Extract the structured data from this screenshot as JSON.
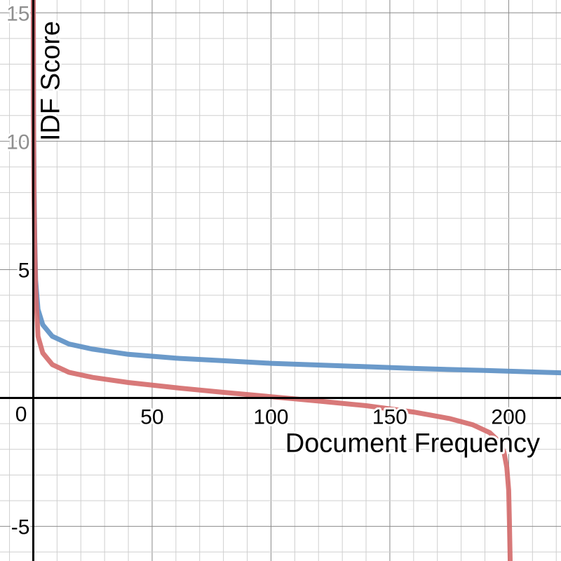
{
  "chart_data": {
    "type": "line",
    "xlabel": "Document Frequency",
    "ylabel": "IDF Score",
    "xlim": [
      -14,
      222
    ],
    "ylim": [
      -6.35,
      15.5
    ],
    "x_ticks": [
      {
        "value": 50,
        "label": "50"
      },
      {
        "value": 100,
        "label": "100"
      },
      {
        "value": 150,
        "label": "150"
      },
      {
        "value": 200,
        "label": "200"
      }
    ],
    "y_ticks": [
      {
        "value": 15,
        "label": "15"
      },
      {
        "value": 10,
        "label": "10"
      },
      {
        "value": 5,
        "label": "5"
      },
      {
        "value": -5,
        "label": "-5"
      }
    ],
    "origin_label": "0",
    "grid": true,
    "series": [
      {
        "color": "#5b8fc4",
        "x": [
          0.02,
          0.1,
          0.3,
          0.6,
          1,
          2,
          4,
          8,
          15,
          25,
          40,
          60,
          80,
          100,
          130,
          160,
          190,
          222
        ],
        "y": [
          15.5,
          11.0,
          8.3,
          6.3,
          4.6,
          3.45,
          2.85,
          2.4,
          2.1,
          1.9,
          1.7,
          1.55,
          1.45,
          1.35,
          1.25,
          1.15,
          1.07,
          0.98
        ]
      },
      {
        "color": "#d46a6a",
        "x": [
          0.02,
          0.1,
          0.3,
          0.6,
          1,
          2,
          4,
          8,
          15,
          25,
          40,
          60,
          80,
          100,
          120,
          140,
          160,
          175,
          185,
          192,
          196,
          198,
          199.2,
          200,
          200.3,
          200.6
        ],
        "y": [
          15.5,
          11.0,
          8.0,
          6.0,
          4.3,
          2.4,
          1.75,
          1.3,
          1.0,
          0.8,
          0.6,
          0.4,
          0.22,
          0.05,
          -0.12,
          -0.3,
          -0.55,
          -0.8,
          -1.05,
          -1.35,
          -1.7,
          -2.1,
          -2.7,
          -3.6,
          -4.8,
          -6.35
        ]
      }
    ]
  }
}
